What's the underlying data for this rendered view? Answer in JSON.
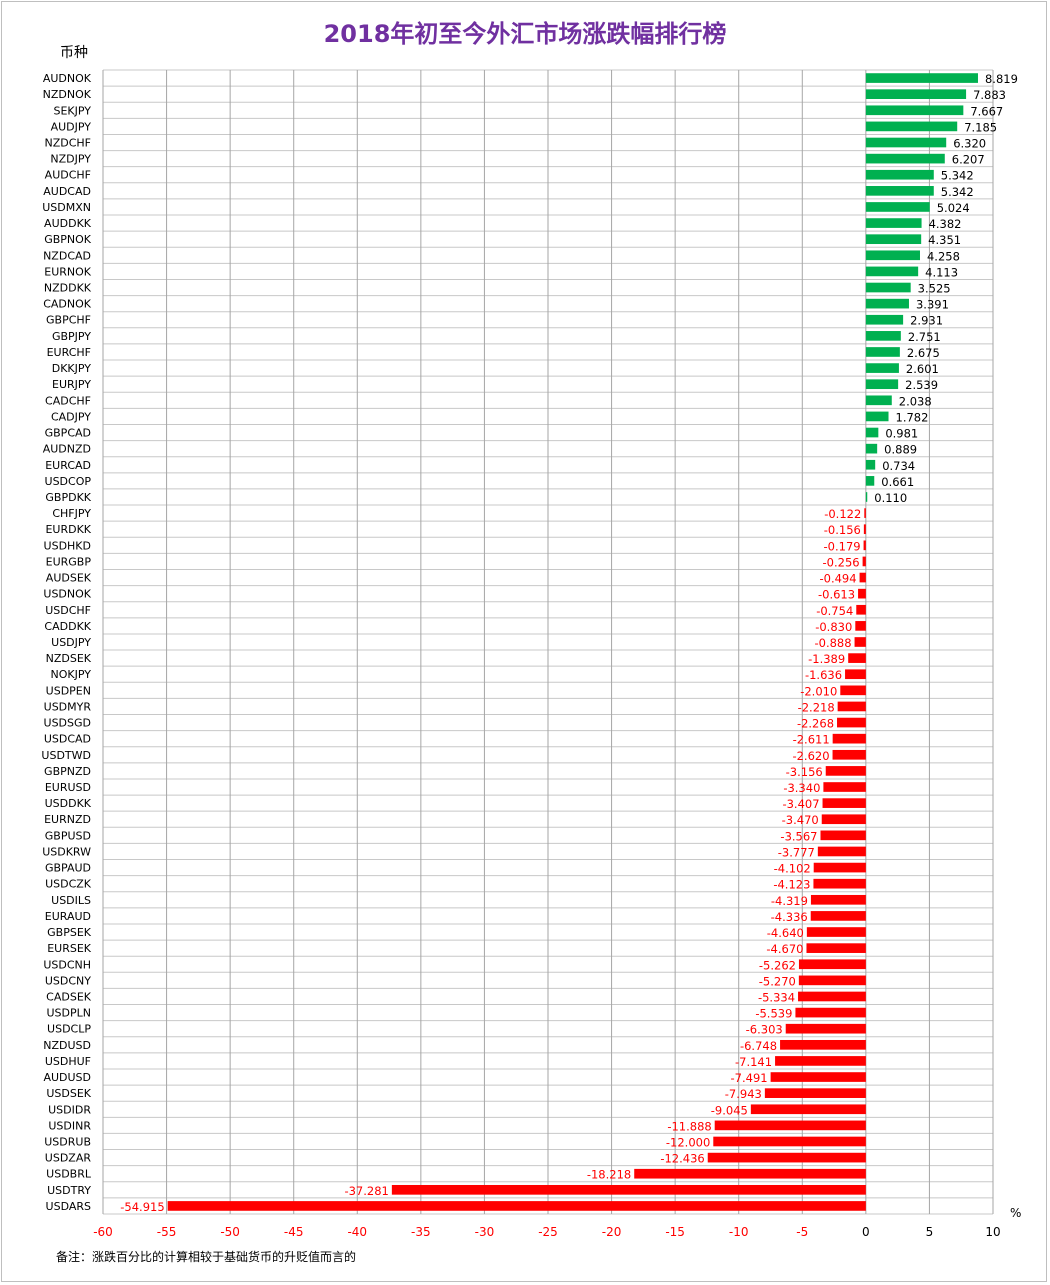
{
  "chart_data": {
    "type": "bar",
    "orientation": "horizontal",
    "title": "2018年初至今外汇市场涨跌幅排行榜",
    "ylabel": "币种",
    "unit": "%",
    "footnote": "备注：涨跌百分比的计算相较于基础货币的升贬值而言的",
    "xlim": [
      -60,
      10
    ],
    "x_ticks": [
      "-60",
      "-55",
      "-50",
      "-45",
      "-40",
      "-35",
      "-30",
      "-25",
      "-20",
      "-15",
      "-10",
      "-5",
      "0",
      "5",
      "10"
    ],
    "grid": "vertical gridlines every 5; horizontal row lines",
    "colors": {
      "positive": "#00b050",
      "negative": "#ff0000",
      "title": "#7030a0"
    },
    "categories": [
      "AUDNOK",
      "NZDNOK",
      "SEKJPY",
      "AUDJPY",
      "NZDCHF",
      "NZDJPY",
      "AUDCHF",
      "AUDCAD",
      "USDMXN",
      "AUDDKK",
      "GBPNOK",
      "NZDCAD",
      "EURNOK",
      "NZDDKK",
      "CADNOK",
      "GBPCHF",
      "GBPJPY",
      "EURCHF",
      "DKKJPY",
      "EURJPY",
      "CADCHF",
      "CADJPY",
      "GBPCAD",
      "AUDNZD",
      "EURCAD",
      "USDCOP",
      "GBPDKK",
      "CHFJPY",
      "EURDKK",
      "USDHKD",
      "EURGBP",
      "AUDSEK",
      "USDNOK",
      "USDCHF",
      "CADDKK",
      "USDJPY",
      "NZDSEK",
      "NOKJPY",
      "USDPEN",
      "USDMYR",
      "USDSGD",
      "USDCAD",
      "USDTWD",
      "GBPNZD",
      "EURUSD",
      "USDDKK",
      "EURNZD",
      "GBPUSD",
      "USDKRW",
      "GBPAUD",
      "USDCZK",
      "USDILS",
      "EURAUD",
      "GBPSEK",
      "EURSEK",
      "USDCNH",
      "USDCNY",
      "CADSEK",
      "USDPLN",
      "USDCLP",
      "NZDUSD",
      "USDHUF",
      "AUDUSD",
      "USDSEK",
      "USDIDR",
      "USDINR",
      "USDRUB",
      "USDZAR",
      "USDBRL",
      "USDTRY",
      "USDARS"
    ],
    "value_labels": [
      "8.819",
      "7.883",
      "7.667",
      "7.185",
      "6.320",
      "6.207",
      "5.342",
      "5.342",
      "5.024",
      "4.382",
      "4.351",
      "4.258",
      "4.113",
      "3.525",
      "3.391",
      "2.931",
      "2.751",
      "2.675",
      "2.601",
      "2.539",
      "2.038",
      "1.782",
      "0.981",
      "0.889",
      "0.734",
      "0.661",
      "0.110",
      "-0.122",
      "-0.156",
      "-0.179",
      "-0.256",
      "-0.494",
      "-0.613",
      "-0.754",
      "-0.830",
      "-0.888",
      "-1.389",
      "-1.636",
      "-2.010",
      "-2.218",
      "-2.268",
      "-2.611",
      "-2.620",
      "-3.156",
      "-3.340",
      "-3.407",
      "-3.470",
      "-3.567",
      "-3.777",
      "-4.102",
      "-4.123",
      "-4.319",
      "-4.336",
      "-4.640",
      "-4.670",
      "-5.262",
      "-5.270",
      "-5.334",
      "-5.539",
      "-6.303",
      "-6.748",
      "-7.141",
      "-7.491",
      "-7.943",
      "-9.045",
      "-11.888",
      "-12.000",
      "-12.436",
      "-18.218",
      "-37.281",
      "-54.915"
    ]
  }
}
